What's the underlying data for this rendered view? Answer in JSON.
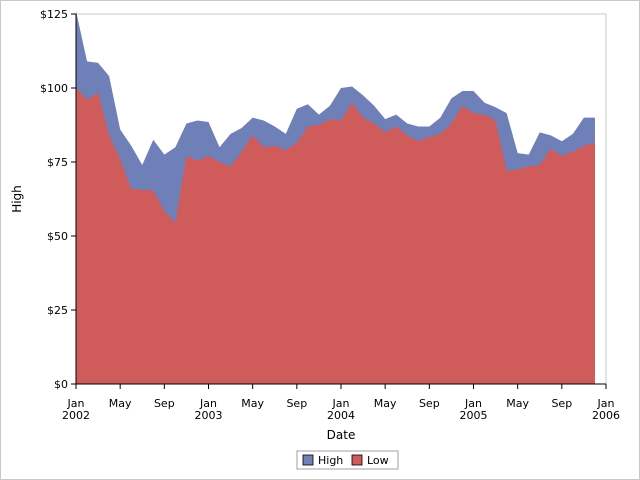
{
  "chart_data": {
    "type": "area",
    "x": [
      "2002-01",
      "2002-02",
      "2002-03",
      "2002-04",
      "2002-05",
      "2002-06",
      "2002-07",
      "2002-08",
      "2002-09",
      "2002-10",
      "2002-11",
      "2002-12",
      "2003-01",
      "2003-02",
      "2003-03",
      "2003-04",
      "2003-05",
      "2003-06",
      "2003-07",
      "2003-08",
      "2003-09",
      "2003-10",
      "2003-11",
      "2003-12",
      "2004-01",
      "2004-02",
      "2004-03",
      "2004-04",
      "2004-05",
      "2004-06",
      "2004-07",
      "2004-08",
      "2004-09",
      "2004-10",
      "2004-11",
      "2004-12",
      "2005-01",
      "2005-02",
      "2005-03",
      "2005-04",
      "2005-05",
      "2005-06",
      "2005-07",
      "2005-08",
      "2005-09",
      "2005-10",
      "2005-11",
      "2005-12"
    ],
    "series": [
      {
        "name": "High",
        "color": "#6f7fb8",
        "values": [
          126,
          109,
          108.5,
          104,
          86,
          80.5,
          74,
          82.5,
          77.5,
          80,
          88,
          89,
          88.5,
          80,
          84.5,
          86.5,
          90,
          89,
          87,
          84.5,
          93,
          94.5,
          91,
          94,
          100,
          100.5,
          97.5,
          94,
          89.5,
          91,
          88,
          87,
          87,
          90,
          96.5,
          99,
          99,
          95,
          93.5,
          91.5,
          78,
          77.5,
          85,
          84,
          82,
          84.5,
          90,
          90
        ]
      },
      {
        "name": "Low",
        "color": "#d05b5b",
        "values": [
          100,
          96,
          98.5,
          84,
          76,
          66,
          65.5,
          65.5,
          58.5,
          54.5,
          77,
          75.5,
          77,
          75,
          73.5,
          78.5,
          84,
          80,
          80.5,
          79,
          81.5,
          87,
          87.5,
          89.5,
          89,
          95,
          90,
          88,
          85,
          87,
          84,
          82,
          83.5,
          84.5,
          88,
          94,
          91.5,
          91,
          89,
          72,
          72.5,
          73.5,
          74,
          79.5,
          77,
          78.5,
          80.5,
          81.5
        ]
      }
    ],
    "xlabel": "Date",
    "ylabel": "High",
    "ylim": [
      0,
      125
    ],
    "xlim": [
      "2002-01",
      "2006-01"
    ],
    "y_ticks": [
      "$0",
      "$25",
      "$50",
      "$75",
      "$100",
      "$125"
    ],
    "x_ticks": [
      {
        "date": "2002-01",
        "label": "Jan",
        "sublabel": "2002"
      },
      {
        "date": "2002-05",
        "label": "May",
        "sublabel": ""
      },
      {
        "date": "2002-09",
        "label": "Sep",
        "sublabel": ""
      },
      {
        "date": "2003-01",
        "label": "Jan",
        "sublabel": "2003"
      },
      {
        "date": "2003-05",
        "label": "May",
        "sublabel": ""
      },
      {
        "date": "2003-09",
        "label": "Sep",
        "sublabel": ""
      },
      {
        "date": "2004-01",
        "label": "Jan",
        "sublabel": "2004"
      },
      {
        "date": "2004-05",
        "label": "May",
        "sublabel": ""
      },
      {
        "date": "2004-09",
        "label": "Sep",
        "sublabel": ""
      },
      {
        "date": "2005-01",
        "label": "Jan",
        "sublabel": "2005"
      },
      {
        "date": "2005-05",
        "label": "May",
        "sublabel": ""
      },
      {
        "date": "2005-09",
        "label": "Sep",
        "sublabel": ""
      },
      {
        "date": "2006-01",
        "label": "Jan",
        "sublabel": "2006"
      }
    ],
    "grid": false,
    "legend_position": "bottom-center"
  }
}
